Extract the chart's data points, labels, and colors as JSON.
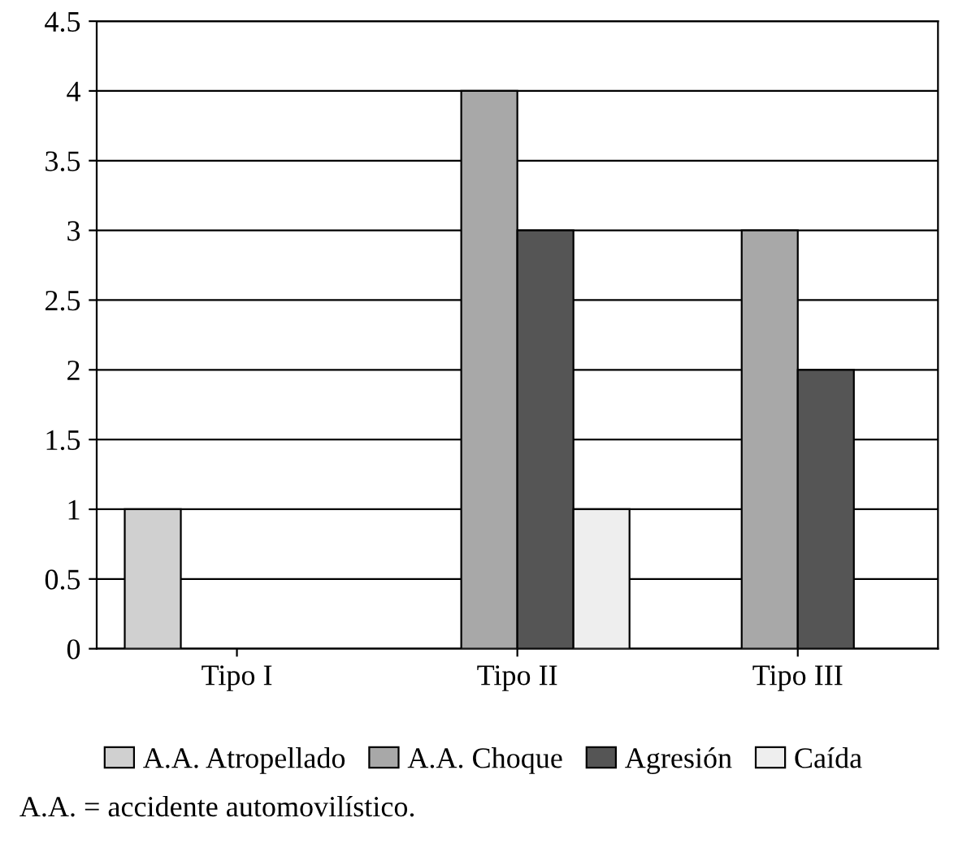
{
  "chart_data": {
    "type": "bar",
    "categories": [
      "Tipo I",
      "Tipo II",
      "Tipo III"
    ],
    "series": [
      {
        "name": "A.A. Atropellado",
        "color": "#d0d0d0",
        "values": [
          1,
          null,
          null
        ]
      },
      {
        "name": "A.A. Choque",
        "color": "#a8a8a8",
        "values": [
          null,
          4,
          3
        ]
      },
      {
        "name": "Agresión",
        "color": "#555555",
        "values": [
          null,
          3,
          2
        ]
      },
      {
        "name": "Caída",
        "color": "#eeeeee",
        "values": [
          null,
          1,
          null
        ]
      }
    ],
    "ylim": [
      0,
      4.5
    ],
    "yticks": [
      0,
      0.5,
      1,
      1.5,
      2,
      2.5,
      3,
      3.5,
      4,
      4.5
    ],
    "grid": "y",
    "legend": "bottom",
    "annotations": [
      "A.A. = accidente automovilístico."
    ]
  }
}
